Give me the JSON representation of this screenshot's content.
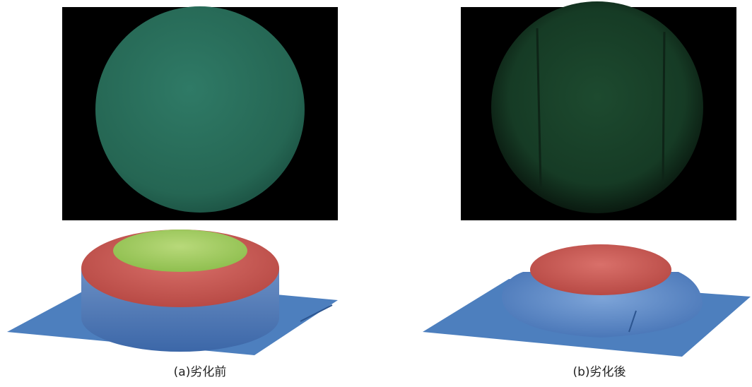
{
  "panels": [
    {
      "caption": "(a)劣化前"
    },
    {
      "caption": "(b)劣化後"
    }
  ]
}
